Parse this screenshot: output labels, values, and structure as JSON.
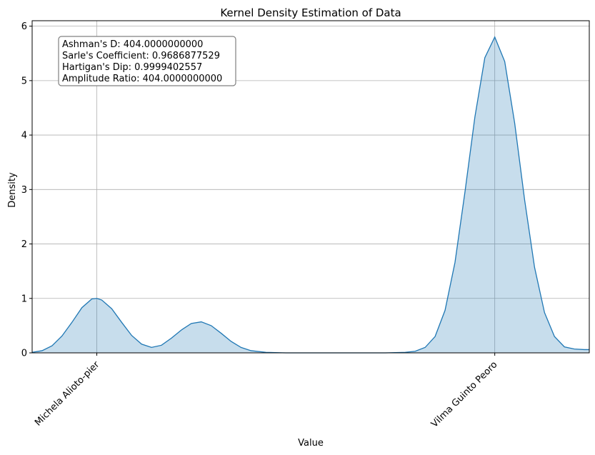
{
  "chart_data": {
    "type": "area",
    "title": "Kernel Density Estimation of Data",
    "xlabel": "Value",
    "ylabel": "Density",
    "ylim": [
      0,
      6.1
    ],
    "grid": true,
    "x_tick_labels": [
      {
        "label": "Michela Alioto-pier",
        "x": 1.0
      },
      {
        "label": "Vilma Guinto Peoro",
        "x": 5.0
      }
    ],
    "y_ticks": [
      0,
      1,
      2,
      3,
      4,
      5,
      6
    ],
    "xlim": [
      0.35,
      5.95
    ],
    "annotation": [
      "Ashman's D: 404.0000000000",
      "Sarle's Coefficient: 0.9686877529",
      "Hartigan's Dip: 0.9999402557",
      "Amplitude Ratio: 404.0000000000"
    ],
    "series": [
      {
        "color": "#1f77b4",
        "fill_color": "#1f77b4",
        "fill_opacity": 0.25,
        "x": [
          0.35,
          0.45,
          0.55,
          0.65,
          0.75,
          0.85,
          0.95,
          1.0,
          1.05,
          1.15,
          1.25,
          1.35,
          1.45,
          1.55,
          1.65,
          1.75,
          1.85,
          1.95,
          2.05,
          2.15,
          2.25,
          2.35,
          2.45,
          2.55,
          2.7,
          2.9,
          3.1,
          3.3,
          3.5,
          3.7,
          3.9,
          4.1,
          4.2,
          4.3,
          4.4,
          4.5,
          4.6,
          4.7,
          4.8,
          4.9,
          5.0,
          5.1,
          5.2,
          5.3,
          5.4,
          5.5,
          5.6,
          5.7,
          5.8,
          5.9,
          5.95
        ],
        "y": [
          0.01,
          0.04,
          0.13,
          0.31,
          0.56,
          0.83,
          0.99,
          1.0,
          0.97,
          0.81,
          0.56,
          0.32,
          0.16,
          0.1,
          0.14,
          0.27,
          0.42,
          0.54,
          0.57,
          0.5,
          0.36,
          0.21,
          0.1,
          0.04,
          0.01,
          0.0,
          0.0,
          0.0,
          0.0,
          0.0,
          0.0,
          0.01,
          0.03,
          0.1,
          0.3,
          0.78,
          1.66,
          2.95,
          4.33,
          5.42,
          5.8,
          5.35,
          4.22,
          2.81,
          1.57,
          0.74,
          0.3,
          0.11,
          0.07,
          0.06,
          0.06
        ]
      }
    ]
  }
}
